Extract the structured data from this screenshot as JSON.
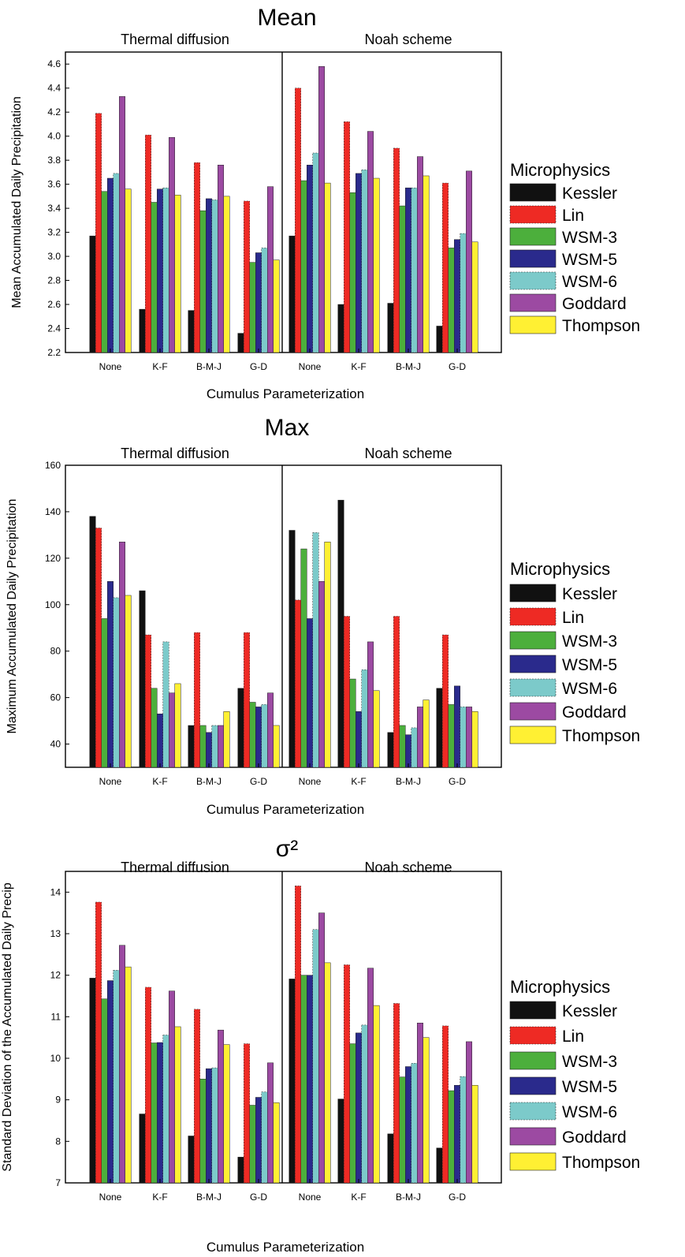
{
  "figure": {
    "legend_title": "Microphysics",
    "colors": {
      "Kessler": "#111111",
      "Lin": "#ee2a24",
      "WSM-3": "#4caf3c",
      "WSM-5": "#2a2a8c",
      "WSM-6": "#7ccaca",
      "Goddard": "#9c4aa2",
      "Thompson": "#fff033"
    }
  },
  "chart_data": [
    {
      "type": "bar",
      "title": "Mean",
      "panel_labels": [
        "Thermal diffusion",
        "Noah scheme"
      ],
      "xlabel": "Cumulus Parameterization",
      "ylabel": "Mean Accumulated Daily Precipitation",
      "categories": [
        "None",
        "K-F",
        "B-M-J",
        "G-D",
        "None",
        "K-F",
        "B-M-J",
        "G-D"
      ],
      "ylim": [
        2.2,
        4.7
      ],
      "yticks": [
        "2.2",
        "2.4",
        "2.6",
        "2.8",
        "3.0",
        "3.2",
        "3.4",
        "3.6",
        "3.8",
        "4.0",
        "4.2",
        "4.4",
        "4.6"
      ],
      "legend_title": "Microphysics",
      "series": [
        {
          "name": "Kessler",
          "values": [
            3.17,
            2.56,
            2.55,
            2.36,
            3.17,
            2.6,
            2.61,
            2.42
          ]
        },
        {
          "name": "Lin",
          "values": [
            4.19,
            4.01,
            3.78,
            3.46,
            4.4,
            4.12,
            3.9,
            3.61
          ]
        },
        {
          "name": "WSM-3",
          "values": [
            3.54,
            3.45,
            3.38,
            2.95,
            3.63,
            3.53,
            3.42,
            3.07
          ]
        },
        {
          "name": "WSM-5",
          "values": [
            3.65,
            3.56,
            3.48,
            3.03,
            3.76,
            3.69,
            3.57,
            3.14
          ]
        },
        {
          "name": "WSM-6",
          "values": [
            3.69,
            3.57,
            3.47,
            3.07,
            3.86,
            3.72,
            3.57,
            3.19
          ]
        },
        {
          "name": "Goddard",
          "values": [
            4.33,
            3.99,
            3.76,
            3.58,
            4.58,
            4.04,
            3.83,
            3.71
          ]
        },
        {
          "name": "Thompson",
          "values": [
            3.56,
            3.51,
            3.5,
            2.97,
            3.61,
            3.65,
            3.67,
            3.12
          ]
        }
      ]
    },
    {
      "type": "bar",
      "title": "Max",
      "panel_labels": [
        "Thermal diffusion",
        "Noah scheme"
      ],
      "xlabel": "Cumulus Parameterization",
      "ylabel": "Maximum Accumulated Daily Precipitation",
      "categories": [
        "None",
        "K-F",
        "B-M-J",
        "G-D",
        "None",
        "K-F",
        "B-M-J",
        "G-D"
      ],
      "ylim": [
        30,
        160
      ],
      "yticks": [
        "40",
        "60",
        "80",
        "100",
        "120",
        "140",
        "160"
      ],
      "legend_title": "Microphysics",
      "series": [
        {
          "name": "Kessler",
          "values": [
            138,
            106,
            48,
            64,
            132,
            145,
            45,
            64
          ]
        },
        {
          "name": "Lin",
          "values": [
            133,
            87,
            88,
            88,
            102,
            95,
            95,
            87
          ]
        },
        {
          "name": "WSM-3",
          "values": [
            94,
            64,
            48,
            58,
            124,
            68,
            48,
            57
          ]
        },
        {
          "name": "WSM-5",
          "values": [
            110,
            53,
            45,
            56,
            94,
            54,
            44,
            65
          ]
        },
        {
          "name": "WSM-6",
          "values": [
            103,
            84,
            48,
            57,
            131,
            72,
            47,
            56
          ]
        },
        {
          "name": "Goddard",
          "values": [
            127,
            62,
            48,
            62,
            110,
            84,
            56,
            56
          ]
        },
        {
          "name": "Thompson",
          "values": [
            104,
            66,
            54,
            48,
            127,
            63,
            59,
            54
          ]
        }
      ]
    },
    {
      "type": "bar",
      "title": "σ²",
      "panel_labels": [
        "Thermal diffusion",
        "Noah scheme"
      ],
      "xlabel": "Cumulus Parameterization",
      "ylabel": "Standard Deviation of the  Accumulated Daily Precip",
      "categories": [
        "None",
        "K-F",
        "B-M-J",
        "G-D",
        "None",
        "K-F",
        "B-M-J",
        "G-D"
      ],
      "ylim": [
        7,
        14.5
      ],
      "yticks": [
        "7",
        "8",
        "9",
        "10",
        "11",
        "12",
        "13",
        "14"
      ],
      "legend_title": "Microphysics",
      "series": [
        {
          "name": "Kessler",
          "values": [
            11.93,
            8.66,
            8.13,
            7.62,
            11.91,
            9.02,
            8.18,
            7.84
          ]
        },
        {
          "name": "Lin",
          "values": [
            13.76,
            11.71,
            11.18,
            10.35,
            14.15,
            12.25,
            11.32,
            10.78
          ]
        },
        {
          "name": "WSM-3",
          "values": [
            11.43,
            10.37,
            9.5,
            8.87,
            12.0,
            10.35,
            9.55,
            9.22
          ]
        },
        {
          "name": "WSM-5",
          "values": [
            11.87,
            10.38,
            9.75,
            9.06,
            12.0,
            10.61,
            9.8,
            9.35
          ]
        },
        {
          "name": "WSM-6",
          "values": [
            12.12,
            10.56,
            9.77,
            9.19,
            13.1,
            10.8,
            9.88,
            9.56
          ]
        },
        {
          "name": "Goddard",
          "values": [
            12.72,
            11.62,
            10.68,
            9.89,
            13.5,
            12.17,
            10.85,
            10.4
          ]
        },
        {
          "name": "Thompson",
          "values": [
            12.2,
            10.76,
            10.33,
            8.93,
            12.3,
            11.27,
            10.5,
            9.35
          ]
        }
      ]
    }
  ]
}
